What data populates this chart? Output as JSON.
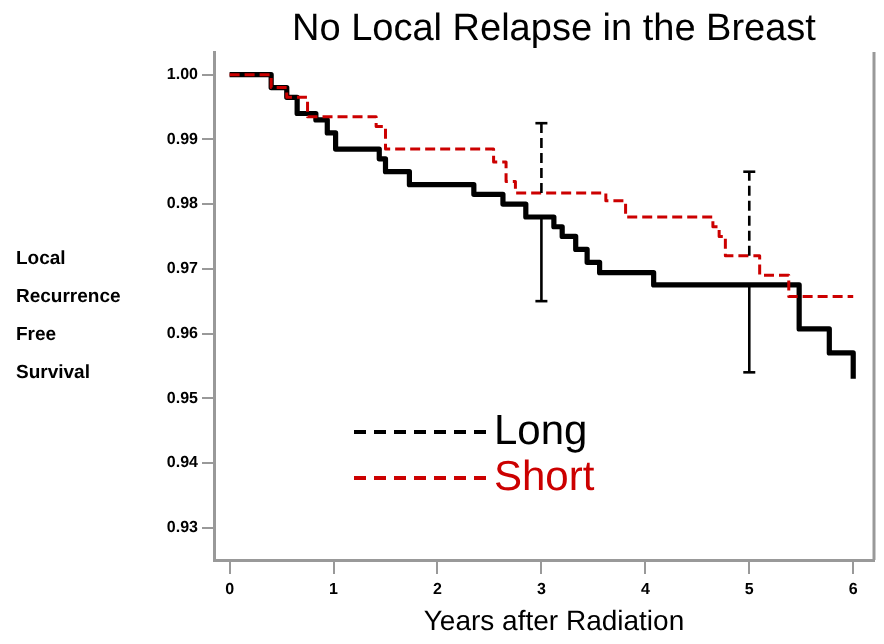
{
  "chart_data": {
    "type": "step",
    "title": "No Local Relapse in the Breast",
    "xlabel": "Years after Radiation",
    "ylabel": "Local Recurrence Free Survival",
    "xlim": [
      -0.15,
      6.2
    ],
    "xticks": [
      0,
      1,
      2,
      3,
      4,
      5,
      6
    ],
    "ylim": [
      0.925,
      1.0035
    ],
    "yticks": [
      {
        "value": 0.93,
        "label": "0.93"
      },
      {
        "value": 0.94,
        "label": "0.94"
      },
      {
        "value": 0.95,
        "label": "0.95"
      },
      {
        "value": 0.96,
        "label": "0.96"
      },
      {
        "value": 0.97,
        "label": "0.97"
      },
      {
        "value": 0.98,
        "label": "0.98"
      },
      {
        "value": 0.99,
        "label": "0.99"
      },
      {
        "value": 1,
        "label": "1.00"
      }
    ],
    "grid": false,
    "legend": "bottom left",
    "marker": "none",
    "series": [
      {
        "name": "Long",
        "color": "#000000",
        "line_style": "solid",
        "x": [
          0,
          0.4,
          0.55,
          0.65,
          0.83,
          0.94,
          1.02,
          1.44,
          1.5,
          1.73,
          2.35,
          2.63,
          2.85,
          3,
          3.12,
          3.2,
          3.33,
          3.44,
          3.56,
          4.08,
          5,
          5.48,
          5.77,
          6.0
        ],
        "values": [
          1.0,
          0.998,
          0.9965,
          0.994,
          0.993,
          0.991,
          0.9885,
          0.987,
          0.985,
          0.983,
          0.9815,
          0.98,
          0.978,
          0.978,
          0.9765,
          0.975,
          0.973,
          0.971,
          0.9694,
          0.9675,
          0.9675,
          0.9607,
          0.957,
          0.953
        ],
        "errors": [
          null,
          null,
          null,
          null,
          null,
          null,
          null,
          null,
          null,
          null,
          null,
          null,
          null,
          [
            0.965,
            0.978
          ],
          null,
          null,
          null,
          null,
          null,
          null,
          [
            0.954,
            0.9675
          ],
          null,
          null,
          null
        ]
      },
      {
        "name": "Short",
        "color": "#cc0000",
        "line_style": "dashed",
        "x": [
          0,
          0.4,
          0.55,
          0.75,
          1.41,
          1.5,
          2.46,
          2.54,
          2.66,
          2.75,
          3,
          3.62,
          3.81,
          4.58,
          4.65,
          4.71,
          4.77,
          5,
          5.1,
          5.38,
          6.0
        ],
        "values": [
          1.0,
          0.998,
          0.9965,
          0.9935,
          0.992,
          0.9885,
          0.9885,
          0.9865,
          0.9835,
          0.9817,
          0.9817,
          0.9805,
          0.978,
          0.978,
          0.9765,
          0.975,
          0.972,
          0.972,
          0.969,
          0.9657,
          0.9657
        ],
        "errors": [
          null,
          null,
          null,
          null,
          null,
          null,
          null,
          null,
          null,
          null,
          [
            0.9817,
            0.9925
          ],
          null,
          null,
          null,
          null,
          null,
          null,
          [
            0.972,
            0.985
          ],
          null,
          null,
          null
        ]
      }
    ]
  }
}
